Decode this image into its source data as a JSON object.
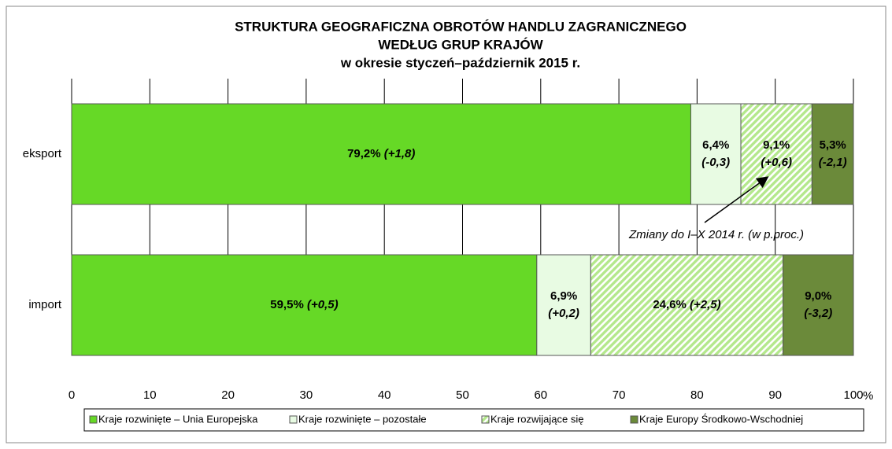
{
  "chart_data": {
    "type": "stacked_barh",
    "title": [
      "STRUKTURA GEOGRAFICZNA OBROTÓW HANDLU ZAGRANICZNEGO",
      "WEDŁUG GRUP KRAJÓW",
      "w okresie styczeń–październik 2015 r."
    ],
    "categories": [
      "eksport",
      "import"
    ],
    "series": [
      {
        "name": "Kraje rozwinięte – Unia Europejska",
        "color": "#66d926",
        "values": [
          79.2,
          59.5
        ],
        "value_labels": [
          "79,2%",
          "59,5%"
        ],
        "change_values": [
          1.8,
          0.5
        ],
        "change_labels": [
          "(+1,8)",
          "(+0,5)"
        ]
      },
      {
        "name": "Kraje rozwinięte – pozostałe",
        "color": "#e8fbe3",
        "values": [
          6.4,
          6.9
        ],
        "value_labels": [
          "6,4%",
          "6,9%"
        ],
        "change_values": [
          -0.3,
          0.2
        ],
        "change_labels": [
          "(-0,3)",
          "(+0,2)"
        ]
      },
      {
        "name": "Kraje rozwijające się",
        "color": "#b4e88c",
        "pattern": "hatch",
        "values": [
          9.1,
          24.6
        ],
        "value_labels": [
          "9,1%",
          "24,6%"
        ],
        "change_values": [
          0.6,
          2.5
        ],
        "change_labels": [
          "(+0,6)",
          "(+2,5)"
        ]
      },
      {
        "name": "Kraje Europy Środkowo-Wschodniej",
        "color": "#6b8a3a",
        "values": [
          5.3,
          9.0
        ],
        "value_labels": [
          "5,3%",
          "9,0%"
        ],
        "change_values": [
          -2.1,
          -3.2
        ],
        "change_labels": [
          "(-2,1)",
          "(-3,2)"
        ]
      }
    ],
    "annotation": "Zmiany do I–X 2014 r. (w p.proc.)",
    "xlabel": "%",
    "xlim": [
      0,
      100
    ],
    "xticks": [
      0,
      10,
      20,
      30,
      40,
      50,
      60,
      70,
      80,
      90,
      100
    ],
    "grid": true,
    "legend": "bottom"
  }
}
